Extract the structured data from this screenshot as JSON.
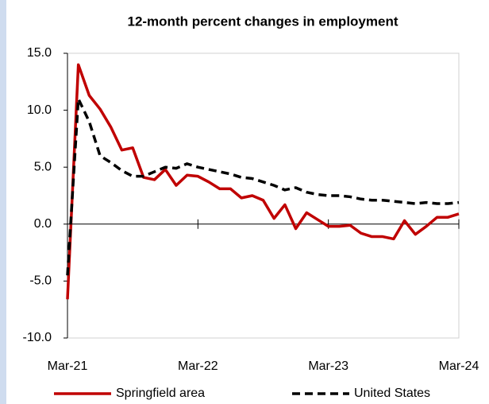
{
  "chart_data": {
    "type": "line",
    "title": "12-month percent changes in employment",
    "categories": [
      "Mar-21",
      null,
      null,
      null,
      null,
      null,
      null,
      null,
      null,
      null,
      null,
      null,
      "Mar-22",
      null,
      null,
      null,
      null,
      null,
      null,
      null,
      null,
      null,
      null,
      null,
      "Mar-23",
      null,
      null,
      null,
      null,
      null,
      null,
      null,
      null,
      null,
      null,
      null,
      "Mar-24"
    ],
    "series": [
      {
        "name": "Springfield area",
        "color": "#c00000",
        "dash": false,
        "values": [
          -6.6,
          14.0,
          11.3,
          10.1,
          8.5,
          6.5,
          6.7,
          4.1,
          3.9,
          4.8,
          3.4,
          4.3,
          4.2,
          3.7,
          3.1,
          3.1,
          2.3,
          2.5,
          2.1,
          0.5,
          1.7,
          -0.4,
          1.0,
          0.4,
          -0.2,
          -0.2,
          -0.1,
          -0.8,
          -1.1,
          -1.1,
          -1.3,
          0.3,
          -0.9,
          -0.2,
          0.6,
          0.6,
          0.9
        ]
      },
      {
        "name": "United States",
        "color": "#000000",
        "dash": true,
        "values": [
          -4.5,
          11.0,
          9.0,
          6.0,
          5.4,
          4.7,
          4.2,
          4.2,
          4.6,
          5.0,
          4.9,
          5.3,
          5.0,
          4.8,
          4.6,
          4.4,
          4.1,
          4.0,
          3.7,
          3.4,
          3.0,
          3.2,
          2.8,
          2.6,
          2.5,
          2.5,
          2.4,
          2.2,
          2.1,
          2.1,
          2.0,
          1.9,
          1.8,
          1.9,
          1.8,
          1.8,
          1.9
        ]
      }
    ],
    "ylim": [
      -10,
      15
    ],
    "yticks": [
      {
        "value": -10,
        "label": "-10.0"
      },
      {
        "value": -5,
        "label": "-5.0"
      },
      {
        "value": 0,
        "label": "0.0"
      },
      {
        "value": 5,
        "label": "5.0"
      },
      {
        "value": 10,
        "label": "10.0"
      },
      {
        "value": 15,
        "label": "15.0"
      }
    ],
    "legend": "bottom"
  }
}
